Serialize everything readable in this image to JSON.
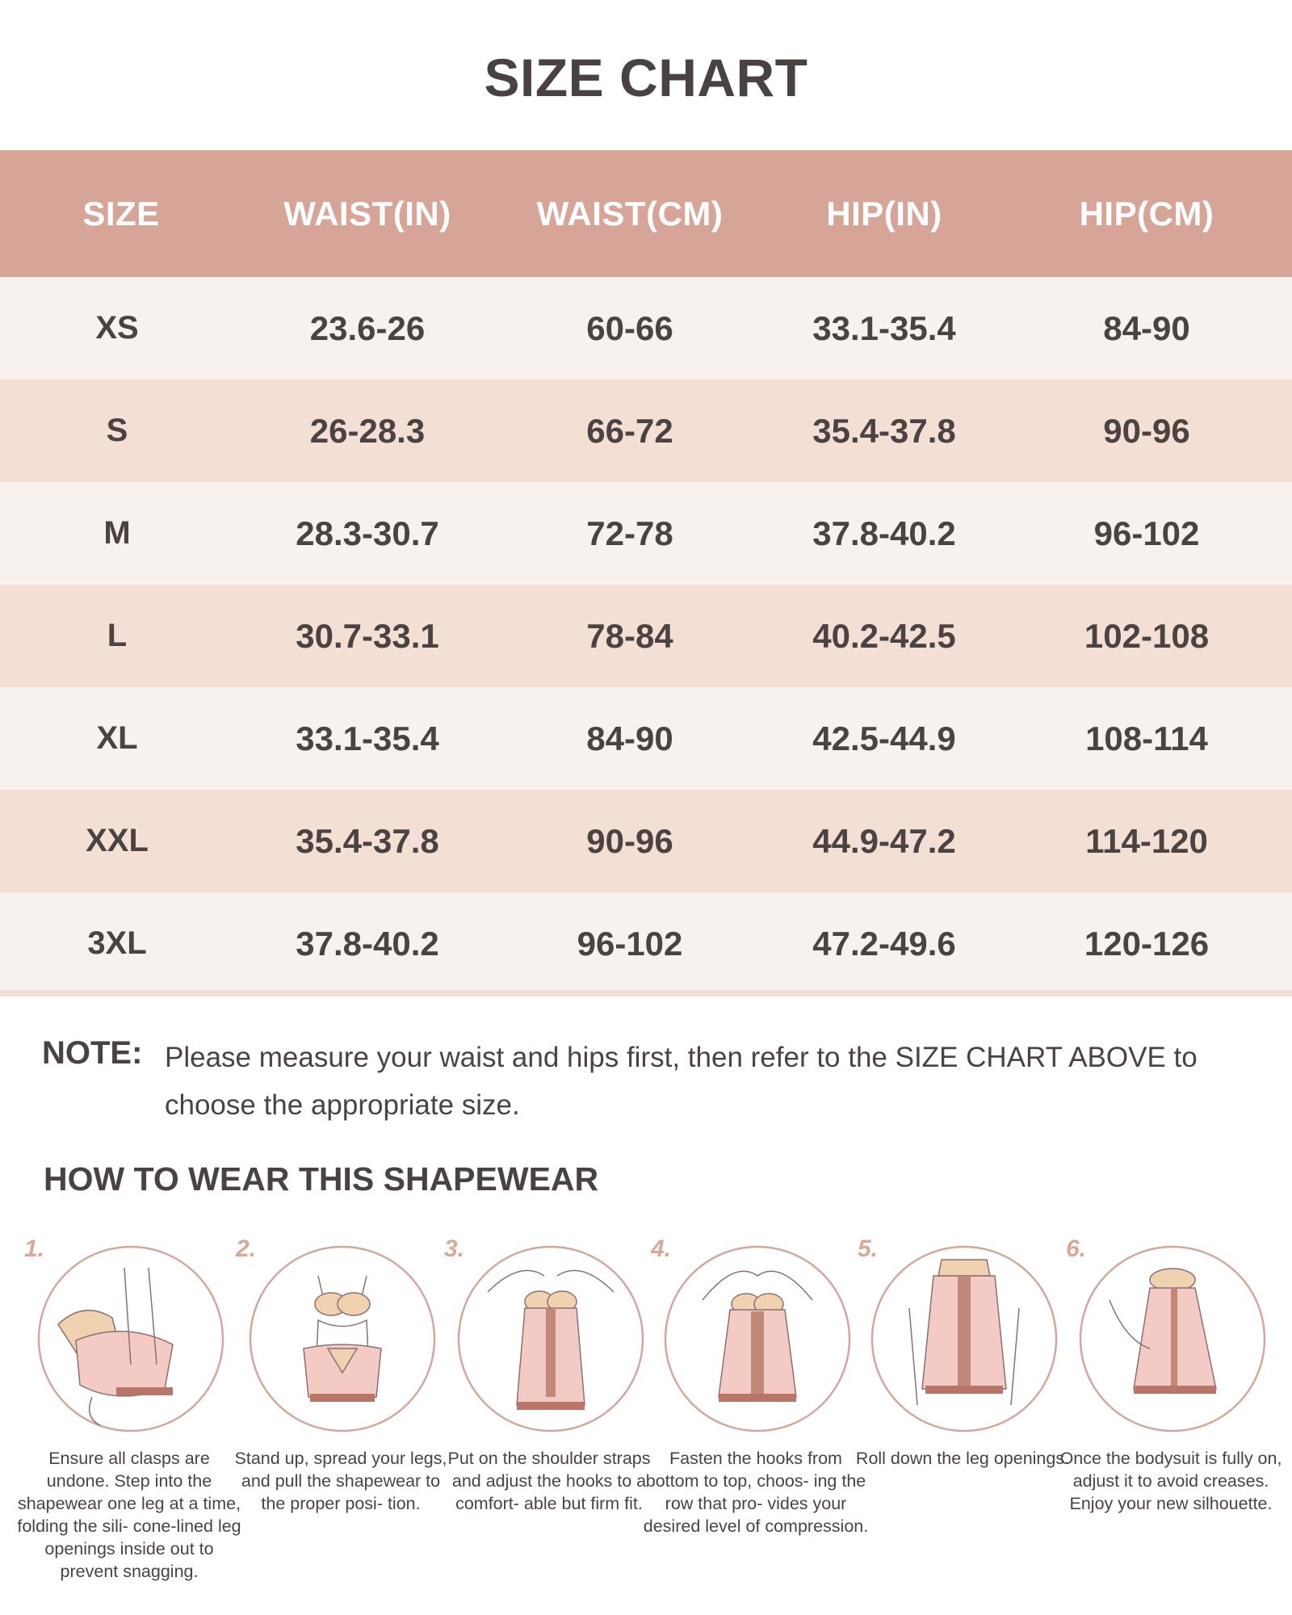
{
  "title": "SIZE CHART",
  "table": {
    "headers": [
      "SIZE",
      "WAIST(IN)",
      "WAIST(CM)",
      "HIP(IN)",
      "HIP(CM)"
    ],
    "rows": [
      [
        "XS",
        "23.6-26",
        "60-66",
        "33.1-35.4",
        "84-90"
      ],
      [
        "S",
        "26-28.3",
        "66-72",
        "35.4-37.8",
        "90-96"
      ],
      [
        "M",
        "28.3-30.7",
        "72-78",
        "37.8-40.2",
        "96-102"
      ],
      [
        "L",
        "30.7-33.1",
        "78-84",
        "40.2-42.5",
        "102-108"
      ],
      [
        "XL",
        "33.1-35.4",
        "84-90",
        "42.5-44.9",
        "108-114"
      ],
      [
        "XXL",
        "35.4-37.8",
        "90-96",
        "44.9-47.2",
        "114-120"
      ],
      [
        "3XL",
        "37.8-40.2",
        "96-102",
        "47.2-49.6",
        "120-126"
      ]
    ]
  },
  "note": {
    "label": "NOTE:",
    "text": "Please measure your waist and hips first, then refer to the SIZE CHART ABOVE to choose the appropriate size."
  },
  "howto": {
    "heading": "HOW TO WEAR THIS SHAPEWEAR",
    "steps": [
      {
        "number": "1.",
        "icon": "step-into-legs-illustration",
        "text": "Ensure all clasps are undone. Step into the shapewear one leg at a time, folding the sili- cone-lined leg openings inside out to prevent snagging."
      },
      {
        "number": "2.",
        "icon": "pull-up-illustration",
        "text": "Stand up, spread your legs, and pull the shapewear to the proper posi- tion."
      },
      {
        "number": "3.",
        "icon": "shoulder-straps-illustration",
        "text": "Put on the shoulder straps and adjust the hooks to a comfort- able but firm fit."
      },
      {
        "number": "4.",
        "icon": "fasten-hooks-illustration",
        "text": "Fasten the hooks from bottom to top, choos- ing the row that pro- vides your desired level of compression."
      },
      {
        "number": "5.",
        "icon": "roll-down-legs-illustration",
        "text": "Roll down the leg openings."
      },
      {
        "number": "6.",
        "icon": "adjust-bodysuit-illustration",
        "text": "Once the bodysuit is fully on, adjust it to avoid creases. Enjoy your new silhouette."
      }
    ]
  },
  "colors": {
    "header": "#d6a598",
    "row_light": "#f8f2ee",
    "row_dark": "#f3dfd3",
    "text": "#4b4242",
    "accent": "#d8a898",
    "garment": "#f4cbc4",
    "skin": "#f0d2b0"
  }
}
